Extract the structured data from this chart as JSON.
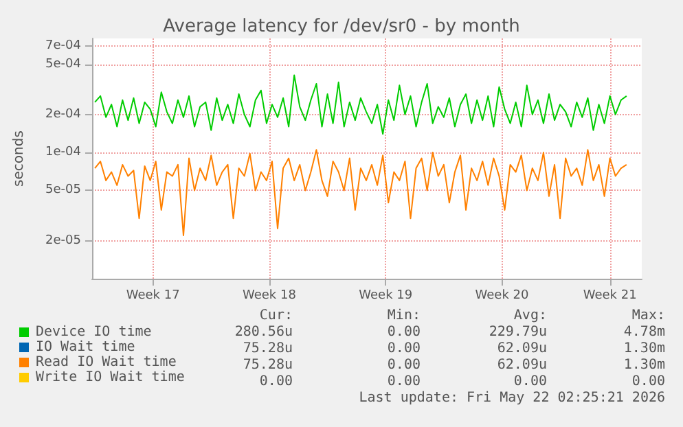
{
  "chart_data": {
    "type": "line",
    "title": "Average latency for /dev/sr0 - by month",
    "ylabel": "seconds",
    "x": [
      "2026-04-20T00:00",
      "2026-04-20T08:00",
      "2026-04-20T16:00",
      "2026-04-21T00:00",
      "2026-04-21T08:00",
      "2026-04-21T16:00",
      "2026-04-22T00:00",
      "2026-04-22T08:00",
      "2026-04-22T16:00",
      "2026-04-23T00:00",
      "2026-04-23T08:00",
      "2026-04-23T16:00",
      "2026-04-24T00:00",
      "2026-04-24T08:00",
      "2026-04-24T16:00",
      "2026-04-25T00:00",
      "2026-04-25T08:00",
      "2026-04-25T16:00",
      "2026-04-26T00:00",
      "2026-04-26T08:00",
      "2026-04-26T16:00",
      "2026-04-27T00:00",
      "2026-04-27T08:00",
      "2026-04-27T16:00",
      "2026-04-28T00:00",
      "2026-04-28T08:00",
      "2026-04-28T16:00",
      "2026-04-29T00:00",
      "2026-04-29T08:00",
      "2026-04-29T16:00",
      "2026-04-30T00:00",
      "2026-04-30T08:00",
      "2026-04-30T16:00",
      "2026-05-01T00:00",
      "2026-05-01T08:00",
      "2026-05-01T16:00",
      "2026-05-02T00:00",
      "2026-05-02T08:00",
      "2026-05-02T16:00",
      "2026-05-03T00:00",
      "2026-05-03T08:00",
      "2026-05-03T16:00",
      "2026-05-04T00:00",
      "2026-05-04T08:00",
      "2026-05-04T16:00",
      "2026-05-05T00:00",
      "2026-05-05T08:00",
      "2026-05-05T16:00",
      "2026-05-06T00:00",
      "2026-05-06T08:00",
      "2026-05-06T16:00",
      "2026-05-07T00:00",
      "2026-05-07T08:00",
      "2026-05-07T16:00",
      "2026-05-08T00:00",
      "2026-05-08T08:00",
      "2026-05-08T16:00",
      "2026-05-09T00:00",
      "2026-05-09T08:00",
      "2026-05-09T16:00",
      "2026-05-10T00:00",
      "2026-05-10T08:00",
      "2026-05-10T16:00",
      "2026-05-11T00:00",
      "2026-05-11T08:00",
      "2026-05-11T16:00",
      "2026-05-12T00:00",
      "2026-05-12T08:00",
      "2026-05-12T16:00",
      "2026-05-13T00:00",
      "2026-05-13T08:00",
      "2026-05-13T16:00",
      "2026-05-14T00:00",
      "2026-05-14T08:00",
      "2026-05-14T16:00",
      "2026-05-15T00:00",
      "2026-05-15T08:00",
      "2026-05-15T16:00",
      "2026-05-16T00:00",
      "2026-05-16T08:00",
      "2026-05-16T16:00",
      "2026-05-17T00:00",
      "2026-05-17T08:00",
      "2026-05-17T16:00",
      "2026-05-18T00:00",
      "2026-05-18T08:00",
      "2026-05-18T16:00",
      "2026-05-19T00:00",
      "2026-05-19T08:00",
      "2026-05-19T16:00",
      "2026-05-20T00:00",
      "2026-05-20T08:00",
      "2026-05-20T16:00",
      "2026-05-21T00:00",
      "2026-05-21T08:00",
      "2026-05-21T16:00",
      "2026-05-22T00:00"
    ],
    "series": [
      {
        "name": "Device IO time",
        "color": "#00cc00",
        "values": [
          0.00025,
          0.00028,
          0.00019,
          0.00024,
          0.00016,
          0.00026,
          0.00018,
          0.00027,
          0.00017,
          0.00025,
          0.00022,
          0.00016,
          0.0003,
          0.00021,
          0.00017,
          0.00026,
          0.00019,
          0.00028,
          0.00016,
          0.00023,
          0.00025,
          0.00015,
          0.00027,
          0.00018,
          0.00024,
          0.00017,
          0.00029,
          0.0002,
          0.00016,
          0.00026,
          0.00031,
          0.00017,
          0.00024,
          0.00019,
          0.00027,
          0.00016,
          0.00041,
          0.00023,
          0.00018,
          0.00026,
          0.00035,
          0.00016,
          0.00029,
          0.00017,
          0.00036,
          0.00016,
          0.00025,
          0.00018,
          0.00027,
          0.00021,
          0.00017,
          0.00024,
          0.00014,
          0.00026,
          0.00018,
          0.00034,
          0.0002,
          0.00028,
          0.00016,
          0.00025,
          0.00035,
          0.00017,
          0.00023,
          0.00019,
          0.00027,
          0.00016,
          0.00024,
          0.00029,
          0.00017,
          0.00026,
          0.00018,
          0.00028,
          0.00016,
          0.00033,
          0.00022,
          0.00017,
          0.00025,
          0.00016,
          0.00034,
          0.0002,
          0.00026,
          0.00017,
          0.00029,
          0.00018,
          0.00024,
          0.00021,
          0.00016,
          0.00025,
          0.00019,
          0.00027,
          0.00015,
          0.00024,
          0.00017,
          0.00028,
          0.0002,
          0.00026,
          0.00028
        ]
      },
      {
        "name": "IO Wait time",
        "color": "#0066b3",
        "values": [
          null,
          null,
          null,
          null,
          null,
          null,
          null,
          null,
          null,
          null,
          null,
          null,
          null,
          null,
          null,
          null,
          null,
          null,
          null,
          null,
          null,
          null,
          null,
          null,
          null,
          null,
          null,
          null,
          null,
          null,
          null,
          null,
          null,
          null,
          null,
          null,
          null,
          null,
          null,
          null,
          null,
          null,
          null,
          null,
          null,
          null,
          null,
          null,
          null,
          null,
          null,
          null,
          null,
          null,
          null,
          null,
          null,
          null,
          null,
          null,
          null,
          null,
          null,
          null,
          null,
          null,
          null,
          null,
          null,
          null,
          null,
          null,
          null,
          null,
          null,
          null,
          null,
          null,
          null,
          null,
          null,
          null,
          null,
          null,
          null,
          null,
          null,
          null,
          null,
          null,
          null,
          null,
          null,
          null,
          null,
          null,
          null
        ]
      },
      {
        "name": "Read IO Wait time",
        "color": "#ff8000",
        "values": [
          7.5e-05,
          8.5e-05,
          6e-05,
          7e-05,
          5.5e-05,
          8e-05,
          6.5e-05,
          7.2e-05,
          3e-05,
          7.8e-05,
          6e-05,
          8.5e-05,
          3.5e-05,
          7e-05,
          6.5e-05,
          8e-05,
          2.2e-05,
          9e-05,
          5e-05,
          7.5e-05,
          6e-05,
          9.5e-05,
          5.5e-05,
          7e-05,
          8e-05,
          3e-05,
          7.5e-05,
          6.5e-05,
          9.8e-05,
          5e-05,
          7e-05,
          6e-05,
          8.5e-05,
          2.5e-05,
          7.5e-05,
          9e-05,
          6e-05,
          8e-05,
          5e-05,
          7e-05,
          0.000105,
          6e-05,
          4.5e-05,
          8.5e-05,
          7e-05,
          5e-05,
          9e-05,
          3.5e-05,
          7.5e-05,
          6e-05,
          8e-05,
          5.5e-05,
          9.5e-05,
          4e-05,
          7e-05,
          6e-05,
          8.5e-05,
          3e-05,
          7.5e-05,
          9e-05,
          5e-05,
          0.0001,
          6.5e-05,
          8e-05,
          4e-05,
          7e-05,
          9.5e-05,
          3.5e-05,
          7.5e-05,
          6e-05,
          8.5e-05,
          5.5e-05,
          9e-05,
          6.5e-05,
          3.5e-05,
          8e-05,
          7e-05,
          9.5e-05,
          5e-05,
          7.5e-05,
          6e-05,
          0.0001,
          4.5e-05,
          8e-05,
          3e-05,
          9e-05,
          6.5e-05,
          7.5e-05,
          5.5e-05,
          0.000105,
          6e-05,
          8e-05,
          4.5e-05,
          9e-05,
          6.5e-05,
          7.5e-05,
          8e-05
        ]
      },
      {
        "name": "Write IO Wait time",
        "color": "#ffcc00",
        "values": [
          null,
          null,
          null,
          null,
          null,
          null,
          null,
          null,
          null,
          null,
          null,
          null,
          null,
          null,
          null,
          null,
          null,
          null,
          null,
          null,
          null,
          null,
          null,
          null,
          null,
          null,
          null,
          null,
          null,
          null,
          null,
          null,
          null,
          null,
          null,
          null,
          null,
          null,
          null,
          null,
          null,
          null,
          null,
          null,
          null,
          null,
          null,
          null,
          null,
          null,
          null,
          null,
          null,
          null,
          null,
          null,
          null,
          null,
          null,
          null,
          null,
          null,
          null,
          null,
          null,
          null,
          null,
          null,
          null,
          null,
          null,
          null,
          null,
          null,
          null,
          null,
          null,
          null,
          null,
          null,
          null,
          null,
          null,
          null,
          null,
          null,
          null,
          null,
          null,
          null,
          null,
          null,
          null,
          null,
          null,
          null,
          null
        ]
      }
    ],
    "xlim": [
      "2026-04-19T20:00",
      "2026-05-22T22:00"
    ],
    "xticks": [
      {
        "value": "2026-04-23T12:00",
        "label": "Week 17"
      },
      {
        "value": "2026-04-30T12:00",
        "label": "Week 18"
      },
      {
        "value": "2026-05-07T12:00",
        "label": "Week 19"
      },
      {
        "value": "2026-05-14T12:00",
        "label": "Week 20"
      },
      {
        "value": "2026-05-21T00:00",
        "label": "Week 21"
      }
    ],
    "ylim": [
      1e-05,
      0.0008
    ],
    "yticks": [
      {
        "value": 2e-05,
        "label": "2e-05"
      },
      {
        "value": 5e-05,
        "label": "5e-05"
      },
      {
        "value": 0.0001,
        "label": "1e-04"
      },
      {
        "value": 0.0002,
        "label": "2e-04"
      },
      {
        "value": 0.0005,
        "label": "5e-04"
      },
      {
        "value": 0.0007,
        "label": "7e-04"
      }
    ],
    "log": "y",
    "grid": true,
    "legend": "bottom left",
    "marker": "none",
    "line_style": "solid",
    "annotations": [
      "Cur:",
      "Min:",
      "Avg:",
      "Max:",
      "280.56u",
      "0.00",
      "229.79u",
      "4.78m",
      "75.28u",
      "0.00",
      "62.09u",
      "1.30m",
      "75.28u",
      "0.00",
      "62.09u",
      "1.30m",
      "0.00",
      "0.00",
      "0.00",
      "0.00",
      "Last update: Fri May 22 02:25:21 2026"
    ]
  }
}
